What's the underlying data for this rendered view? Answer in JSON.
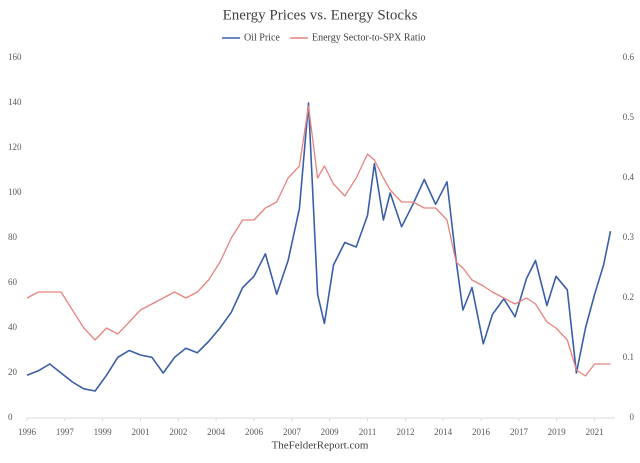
{
  "chart_data": {
    "type": "line",
    "title": "Energy Prices vs. Energy Stocks",
    "source": "TheFelderReport.com",
    "x": [
      1996,
      1996.5,
      1997,
      1997.5,
      1998,
      1998.5,
      1999,
      1999.5,
      2000,
      2000.5,
      2001,
      2001.5,
      2002,
      2002.5,
      2003,
      2003.5,
      2004,
      2004.5,
      2005,
      2005.5,
      2006,
      2006.5,
      2007,
      2007.5,
      2008,
      2008.4,
      2008.8,
      2009.1,
      2009.5,
      2010,
      2010.5,
      2011,
      2011.3,
      2011.7,
      2012,
      2012.5,
      2013,
      2013.5,
      2014,
      2014.5,
      2014.9,
      2015.2,
      2015.6,
      2016.1,
      2016.5,
      2017,
      2017.5,
      2018,
      2018.4,
      2018.9,
      2019.3,
      2019.8,
      2020.2,
      2020.6,
      2021,
      2021.4,
      2021.7
    ],
    "series": [
      {
        "name": "Oil Price",
        "color": "#3a5fa8",
        "values": [
          19,
          21,
          24,
          20,
          16,
          13,
          12,
          19,
          27,
          30,
          28,
          27,
          20,
          27,
          31,
          29,
          34,
          40,
          47,
          58,
          63,
          73,
          55,
          70,
          93,
          140,
          55,
          42,
          68,
          78,
          76,
          90,
          113,
          88,
          100,
          85,
          95,
          106,
          95,
          105,
          70,
          48,
          58,
          33,
          46,
          53,
          45,
          62,
          70,
          50,
          63,
          57,
          20,
          40,
          55,
          68,
          83
        ]
      },
      {
        "name": "Energy Sector-to-SPX Ratio",
        "color": "#e8837f",
        "axis": "y2",
        "values": [
          0.2,
          0.21,
          0.21,
          0.21,
          0.18,
          0.15,
          0.13,
          0.15,
          0.14,
          0.16,
          0.18,
          0.19,
          0.2,
          0.21,
          0.2,
          0.21,
          0.23,
          0.26,
          0.3,
          0.33,
          0.33,
          0.35,
          0.36,
          0.4,
          0.42,
          0.52,
          0.4,
          0.42,
          0.39,
          0.37,
          0.4,
          0.44,
          0.43,
          0.4,
          0.38,
          0.36,
          0.36,
          0.35,
          0.35,
          0.33,
          0.26,
          0.25,
          0.23,
          0.22,
          0.21,
          0.2,
          0.19,
          0.2,
          0.19,
          0.16,
          0.15,
          0.13,
          0.08,
          0.07,
          0.09,
          0.09,
          0.09
        ]
      }
    ],
    "xlim": [
      1996,
      2021.9
    ],
    "xticks": [
      1996,
      {
        "value": 1997.67,
        "label": "1997"
      },
      {
        "value": 1999.33,
        "label": "1999"
      },
      {
        "value": 2001.0,
        "label": "2001"
      },
      {
        "value": 2002.67,
        "label": "2002"
      },
      {
        "value": 2004.33,
        "label": "2004"
      },
      {
        "value": 2006.0,
        "label": "2006"
      },
      {
        "value": 2007.67,
        "label": "2007"
      },
      {
        "value": 2009.33,
        "label": "2009"
      },
      {
        "value": 2011.0,
        "label": "2011"
      },
      {
        "value": 2012.67,
        "label": "2012"
      },
      {
        "value": 2014.33,
        "label": "2014"
      },
      {
        "value": 2016.0,
        "label": "2016"
      },
      {
        "value": 2017.67,
        "label": "2017"
      },
      {
        "value": 2019.33,
        "label": "2019"
      },
      {
        "value": 2021.0,
        "label": "2021"
      }
    ],
    "ylim": [
      0,
      160
    ],
    "yticks": [
      0,
      20,
      40,
      60,
      80,
      100,
      120,
      140,
      160
    ],
    "y2lim": [
      0,
      0.6
    ],
    "y2ticks": [
      0,
      0.1,
      0.2,
      0.3,
      0.4,
      0.5,
      0.6
    ],
    "grid": false
  }
}
